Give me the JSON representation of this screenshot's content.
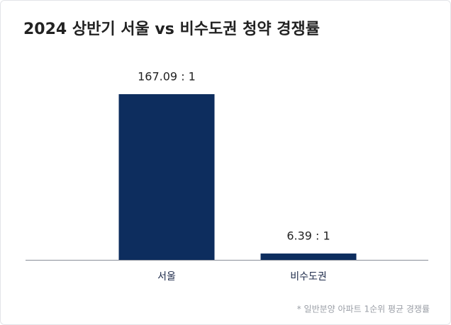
{
  "chart_data": {
    "type": "bar",
    "title": "2024 상반기 서울 vs 비수도권 청약 경쟁률",
    "categories": [
      "서울",
      "비수도권"
    ],
    "values": [
      167.09,
      6.39
    ],
    "value_labels": [
      "167.09 : 1",
      "6.39 : 1"
    ],
    "color": "#0d2d5e",
    "note": "* 일반분양 아파트 1순위 평균 경쟁률"
  }
}
